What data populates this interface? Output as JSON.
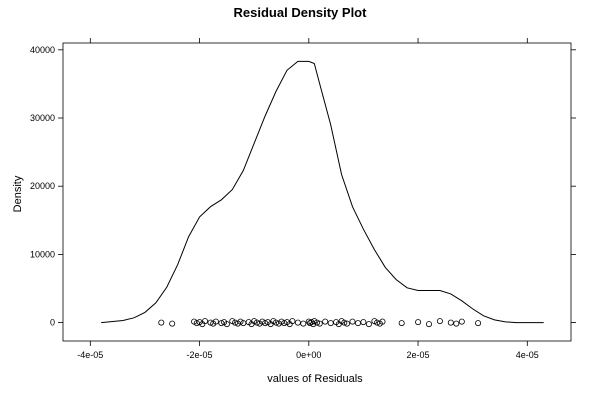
{
  "chart_data": {
    "type": "line",
    "title": "Residual Density Plot",
    "xlabel": "values of Residuals",
    "ylabel": "Density",
    "xlim": [
      -4.5e-05,
      4.8e-05
    ],
    "ylim": [
      -2700,
      41000
    ],
    "x_ticks": [
      -4e-05,
      -2e-05,
      0,
      2e-05,
      4e-05
    ],
    "x_tick_labels": [
      "-4e-05",
      "-2e-05",
      "0e+00",
      "2e-05",
      "4e-05"
    ],
    "y_ticks": [
      0,
      10000,
      20000,
      30000,
      40000
    ],
    "y_tick_labels": [
      "0",
      "10000",
      "20000",
      "30000",
      "40000"
    ],
    "series": [
      {
        "type": "line",
        "x": [
          -3.8e-05,
          -3.4e-05,
          -3.2e-05,
          -3e-05,
          -2.8e-05,
          -2.6e-05,
          -2.4e-05,
          -2.2e-05,
          -2e-05,
          -1.8e-05,
          -1.6e-05,
          -1.4e-05,
          -1.2e-05,
          -1e-05,
          -8e-06,
          -6e-06,
          -4e-06,
          -2e-06,
          0,
          1e-06,
          2e-06,
          4e-06,
          6e-06,
          8e-06,
          1e-05,
          1.2e-05,
          1.4e-05,
          1.6e-05,
          1.8e-05,
          2e-05,
          2.2e-05,
          2.4e-05,
          2.6e-05,
          2.8e-05,
          3e-05,
          3.2e-05,
          3.4e-05,
          3.6e-05,
          3.8e-05,
          4e-05,
          4.3e-05
        ],
        "y": [
          0,
          300,
          700,
          1500,
          2900,
          5200,
          8500,
          12600,
          15500,
          17000,
          18000,
          19500,
          22300,
          26300,
          30300,
          33900,
          37000,
          38300,
          38300,
          38000,
          35000,
          29000,
          21700,
          17000,
          13700,
          10700,
          8100,
          6300,
          5100,
          4700,
          4700,
          4700,
          4200,
          3200,
          2000,
          1000,
          400,
          100,
          0,
          0,
          0
        ]
      }
    ],
    "rug_points": [
      -2.7e-05,
      -2.5e-05,
      -2.1e-05,
      -2.05e-05,
      -2e-05,
      -1.95e-05,
      -1.9e-05,
      -1.8e-05,
      -1.75e-05,
      -1.7e-05,
      -1.6e-05,
      -1.55e-05,
      -1.5e-05,
      -1.4e-05,
      -1.35e-05,
      -1.3e-05,
      -1.25e-05,
      -1.2e-05,
      -1.1e-05,
      -1.05e-05,
      -1e-05,
      -9.5e-06,
      -9e-06,
      -8.5e-06,
      -8e-06,
      -7.5e-06,
      -7e-06,
      -6.5e-06,
      -6e-06,
      -5.5e-06,
      -5e-06,
      -4.5e-06,
      -4e-06,
      -3.5e-06,
      -3e-06,
      -2e-06,
      -1e-06,
      0,
      2e-07,
      5e-07,
      8e-07,
      1e-06,
      1.5e-06,
      2e-06,
      3e-06,
      4e-06,
      5e-06,
      5.5e-06,
      6e-06,
      6.5e-06,
      7e-06,
      8e-06,
      9e-06,
      1e-05,
      1.1e-05,
      1.2e-05,
      1.25e-05,
      1.3e-05,
      1.35e-05,
      1.7e-05,
      2e-05,
      2.2e-05,
      2.4e-05,
      2.6e-05,
      2.7e-05,
      2.8e-05,
      3.1e-05
    ],
    "grid": false
  }
}
